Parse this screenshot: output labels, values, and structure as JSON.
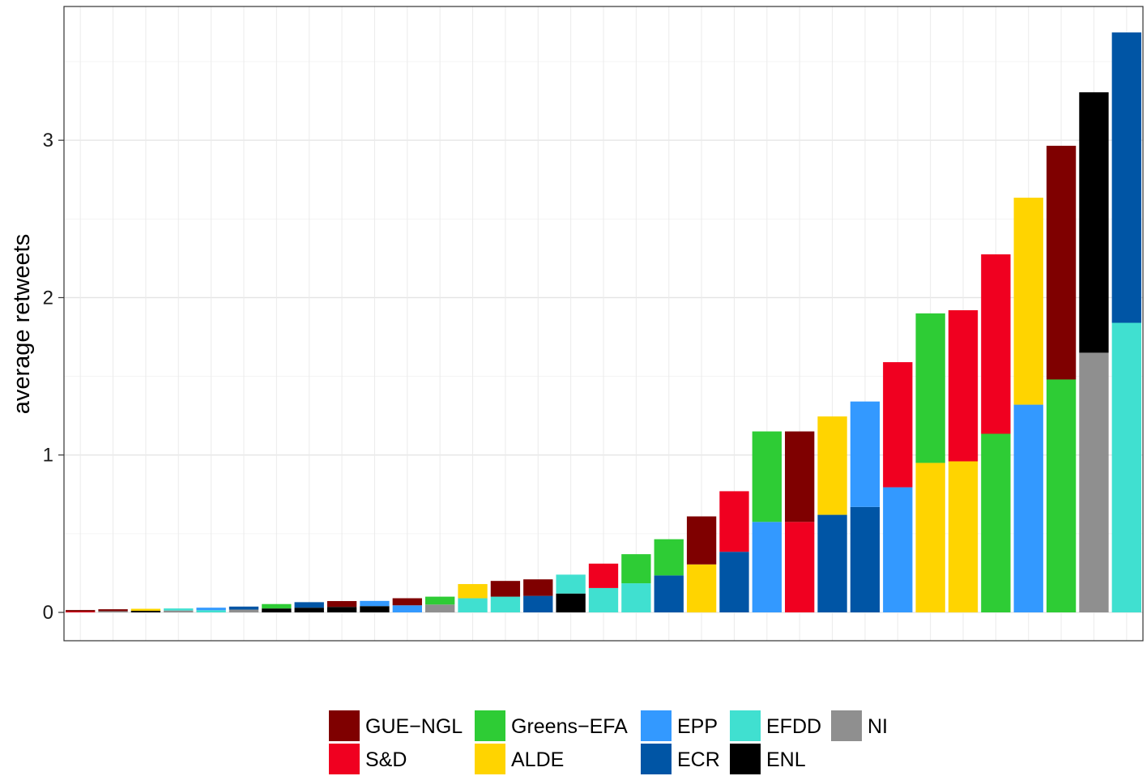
{
  "chart_data": {
    "type": "bar",
    "stacked": true,
    "ylabel": "average retweets",
    "xlabel": "",
    "ylim": [
      -0.18,
      3.85
    ],
    "yticks": [
      0,
      1,
      2,
      3
    ],
    "grid": true,
    "legend_position": "bottom",
    "legend": [
      {
        "name": "GUE−NGL",
        "color": "#7f0000"
      },
      {
        "name": "Greens−EFA",
        "color": "#2ecc35"
      },
      {
        "name": "EPP",
        "color": "#3399ff"
      },
      {
        "name": "EFDD",
        "color": "#40e0d0"
      },
      {
        "name": "NI",
        "color": "#8f8f8f"
      },
      {
        "name": "S&D",
        "color": "#f00020"
      },
      {
        "name": "ALDE",
        "color": "#ffd400"
      },
      {
        "name": "ECR",
        "color": "#0055a5"
      },
      {
        "name": "ENL",
        "color": "#000000"
      }
    ],
    "bars": [
      {
        "segments": [
          {
            "group": "S&D",
            "value": 0.005
          },
          {
            "group": "GUE−NGL",
            "value": 0.01
          }
        ]
      },
      {
        "segments": [
          {
            "group": "NI",
            "value": 0.008
          },
          {
            "group": "GUE−NGL",
            "value": 0.012
          }
        ]
      },
      {
        "segments": [
          {
            "group": "ENL",
            "value": 0.01
          },
          {
            "group": "ALDE",
            "value": 0.013
          }
        ]
      },
      {
        "segments": [
          {
            "group": "NI",
            "value": 0.012
          },
          {
            "group": "EFDD",
            "value": 0.013
          }
        ]
      },
      {
        "segments": [
          {
            "group": "EFDD",
            "value": 0.014
          },
          {
            "group": "EPP",
            "value": 0.016
          }
        ]
      },
      {
        "segments": [
          {
            "group": "NI",
            "value": 0.018
          },
          {
            "group": "ECR",
            "value": 0.019
          }
        ]
      },
      {
        "segments": [
          {
            "group": "ENL",
            "value": 0.025
          },
          {
            "group": "Greens−EFA",
            "value": 0.028
          }
        ]
      },
      {
        "segments": [
          {
            "group": "ENL",
            "value": 0.03
          },
          {
            "group": "ECR",
            "value": 0.035
          }
        ]
      },
      {
        "segments": [
          {
            "group": "ENL",
            "value": 0.035
          },
          {
            "group": "GUE−NGL",
            "value": 0.037
          }
        ]
      },
      {
        "segments": [
          {
            "group": "ENL",
            "value": 0.04
          },
          {
            "group": "EPP",
            "value": 0.033
          }
        ]
      },
      {
        "segments": [
          {
            "group": "EPP",
            "value": 0.045
          },
          {
            "group": "GUE−NGL",
            "value": 0.045
          }
        ]
      },
      {
        "segments": [
          {
            "group": "NI",
            "value": 0.05
          },
          {
            "group": "Greens−EFA",
            "value": 0.05
          }
        ]
      },
      {
        "segments": [
          {
            "group": "EFDD",
            "value": 0.09
          },
          {
            "group": "ALDE",
            "value": 0.09
          }
        ]
      },
      {
        "segments": [
          {
            "group": "EFDD",
            "value": 0.1
          },
          {
            "group": "GUE−NGL",
            "value": 0.1
          }
        ]
      },
      {
        "segments": [
          {
            "group": "ECR",
            "value": 0.105
          },
          {
            "group": "GUE−NGL",
            "value": 0.105
          }
        ]
      },
      {
        "segments": [
          {
            "group": "ENL",
            "value": 0.12
          },
          {
            "group": "EFDD",
            "value": 0.12
          }
        ]
      },
      {
        "segments": [
          {
            "group": "EFDD",
            "value": 0.155
          },
          {
            "group": "S&D",
            "value": 0.155
          }
        ]
      },
      {
        "segments": [
          {
            "group": "EFDD",
            "value": 0.185
          },
          {
            "group": "Greens−EFA",
            "value": 0.185
          }
        ]
      },
      {
        "segments": [
          {
            "group": "ECR",
            "value": 0.235
          },
          {
            "group": "Greens−EFA",
            "value": 0.23
          }
        ]
      },
      {
        "segments": [
          {
            "group": "ALDE",
            "value": 0.305
          },
          {
            "group": "GUE−NGL",
            "value": 0.305
          }
        ]
      },
      {
        "segments": [
          {
            "group": "ECR",
            "value": 0.385
          },
          {
            "group": "S&D",
            "value": 0.385
          }
        ]
      },
      {
        "segments": [
          {
            "group": "EPP",
            "value": 0.575
          },
          {
            "group": "Greens−EFA",
            "value": 0.575
          }
        ]
      },
      {
        "segments": [
          {
            "group": "S&D",
            "value": 0.575
          },
          {
            "group": "GUE−NGL",
            "value": 0.575
          }
        ]
      },
      {
        "segments": [
          {
            "group": "ECR",
            "value": 0.62
          },
          {
            "group": "ALDE",
            "value": 0.625
          }
        ]
      },
      {
        "segments": [
          {
            "group": "ECR",
            "value": 0.67
          },
          {
            "group": "EPP",
            "value": 0.67
          }
        ]
      },
      {
        "segments": [
          {
            "group": "EPP",
            "value": 0.795
          },
          {
            "group": "S&D",
            "value": 0.795
          }
        ]
      },
      {
        "segments": [
          {
            "group": "ALDE",
            "value": 0.95
          },
          {
            "group": "Greens−EFA",
            "value": 0.95
          }
        ]
      },
      {
        "segments": [
          {
            "group": "ALDE",
            "value": 0.96
          },
          {
            "group": "S&D",
            "value": 0.96
          }
        ]
      },
      {
        "segments": [
          {
            "group": "Greens−EFA",
            "value": 1.135
          },
          {
            "group": "S&D",
            "value": 1.14
          }
        ]
      },
      {
        "segments": [
          {
            "group": "EPP",
            "value": 1.32
          },
          {
            "group": "ALDE",
            "value": 1.315
          }
        ]
      },
      {
        "segments": [
          {
            "group": "Greens−EFA",
            "value": 1.48
          },
          {
            "group": "GUE−NGL",
            "value": 1.485
          }
        ]
      },
      {
        "segments": [
          {
            "group": "NI",
            "value": 1.65
          },
          {
            "group": "ENL",
            "value": 1.655
          }
        ]
      },
      {
        "segments": [
          {
            "group": "EFDD",
            "value": 1.84
          },
          {
            "group": "ECR",
            "value": 1.845
          }
        ]
      }
    ]
  }
}
